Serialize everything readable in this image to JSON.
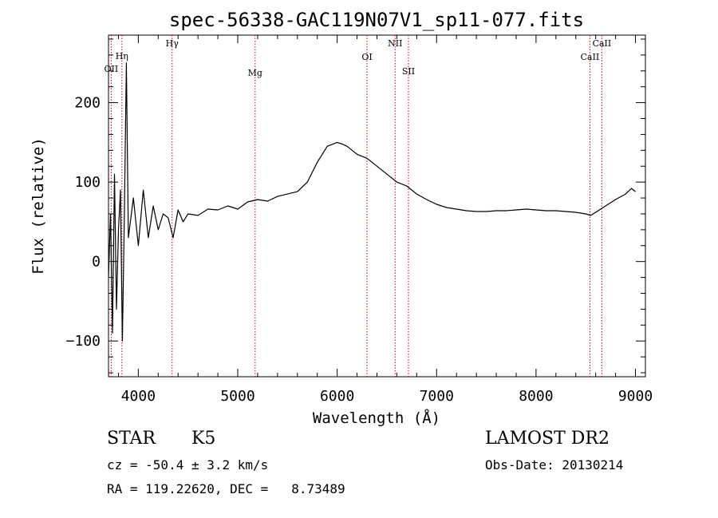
{
  "chart_data": {
    "type": "line",
    "title": "spec-56338-GAC119N07V1_sp11-077.fits",
    "xlabel": "Wavelength (Å)",
    "ylabel": "Flux (relative)",
    "xlim": [
      3700,
      9100
    ],
    "ylim": [
      -145,
      285
    ],
    "xticks": [
      4000,
      5000,
      6000,
      7000,
      8000,
      9000
    ],
    "yticks": [
      -100,
      0,
      100,
      200
    ],
    "grid": false,
    "legend": "none",
    "line_color": "#000000",
    "marker_color": "#cc0000",
    "series": [
      {
        "x": [
          3700,
          3720,
          3740,
          3760,
          3780,
          3800,
          3820,
          3840,
          3860,
          3880,
          3900,
          3950,
          4000,
          4050,
          4100,
          4150,
          4200,
          4250,
          4300,
          4350,
          4400,
          4450,
          4500,
          4600,
          4700,
          4800,
          4900,
          5000,
          5100,
          5200,
          5300,
          5400,
          5500,
          5600,
          5700,
          5800,
          5900,
          6000,
          6050,
          6100,
          6200,
          6300,
          6400,
          6500,
          6600,
          6700,
          6800,
          6900,
          7000,
          7100,
          7200,
          7300,
          7400,
          7500,
          7600,
          7700,
          7800,
          7900,
          8000,
          8100,
          8200,
          8300,
          8400,
          8500,
          8550,
          8600,
          8700,
          8800,
          8900,
          8960,
          9000
        ],
        "y": [
          -20,
          60,
          -90,
          110,
          -60,
          40,
          90,
          -100,
          60,
          250,
          30,
          80,
          20,
          90,
          30,
          70,
          40,
          60,
          55,
          30,
          65,
          50,
          60,
          58,
          66,
          65,
          70,
          66,
          75,
          78,
          76,
          82,
          85,
          88,
          100,
          125,
          145,
          150,
          148,
          145,
          135,
          130,
          120,
          110,
          100,
          95,
          85,
          78,
          72,
          68,
          66,
          64,
          63,
          63,
          64,
          64,
          65,
          66,
          65,
          64,
          64,
          63,
          62,
          60,
          58,
          62,
          70,
          78,
          85,
          92,
          88
        ]
      }
    ],
    "lines": [
      {
        "label": "OII",
        "x": 3727
      },
      {
        "label": "Hη",
        "x": 3835
      },
      {
        "label": "Hγ",
        "x": 4340
      },
      {
        "label": "Mg",
        "x": 5175
      },
      {
        "label": "OI",
        "x": 6300
      },
      {
        "label": "NII",
        "x": 6583
      },
      {
        "label": "SII",
        "x": 6717
      },
      {
        "label": "CaII",
        "x": 8542
      },
      {
        "label": "CaII",
        "x": 8662
      }
    ]
  },
  "info": {
    "class_label": "STAR",
    "subclass_label": "K5",
    "survey": "LAMOST DR2",
    "velocity": "cz = -50.4 ± 3.2 km/s",
    "obs_date": "Obs-Date: 20130214",
    "coords": "RA = 119.22620, DEC =   8.73489"
  }
}
